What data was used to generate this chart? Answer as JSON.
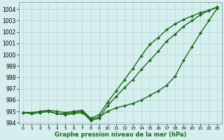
{
  "xlabel": "Graphe pression niveau de la mer (hPa)",
  "x": [
    0,
    1,
    2,
    3,
    4,
    5,
    6,
    7,
    8,
    9,
    10,
    11,
    12,
    13,
    14,
    15,
    16,
    17,
    18,
    19,
    20,
    21,
    22,
    23
  ],
  "line1": [
    994.9,
    994.8,
    994.9,
    995.0,
    994.8,
    994.8,
    994.9,
    995.0,
    994.3,
    994.5,
    995.0,
    995.3,
    995.5,
    995.7,
    996.0,
    996.4,
    996.8,
    997.3,
    998.1,
    999.5,
    1000.7,
    1001.9,
    1003.0,
    1004.1
  ],
  "line2": [
    994.9,
    994.8,
    994.9,
    995.0,
    994.8,
    994.7,
    994.8,
    994.9,
    994.2,
    994.4,
    995.5,
    996.3,
    997.1,
    997.8,
    998.7,
    999.5,
    1000.3,
    1001.2,
    1001.8,
    1002.5,
    1003.0,
    1003.5,
    1003.9,
    1004.2
  ],
  "line3": [
    994.9,
    994.9,
    995.0,
    995.1,
    995.0,
    994.9,
    995.0,
    995.1,
    994.4,
    994.7,
    995.8,
    996.8,
    997.8,
    998.8,
    999.9,
    1000.9,
    1001.5,
    1002.2,
    1002.7,
    1003.1,
    1003.4,
    1003.7,
    1003.9,
    1004.2
  ],
  "line_color": "#1a6b1a",
  "bg_color": "#d6eeee",
  "grid_color": "#b8d8d8",
  "ylim": [
    993.9,
    1004.6
  ],
  "yticks": [
    994,
    995,
    996,
    997,
    998,
    999,
    1000,
    1001,
    1002,
    1003,
    1004
  ],
  "marker": "D",
  "marker_size": 2.2,
  "line_width": 1.0
}
